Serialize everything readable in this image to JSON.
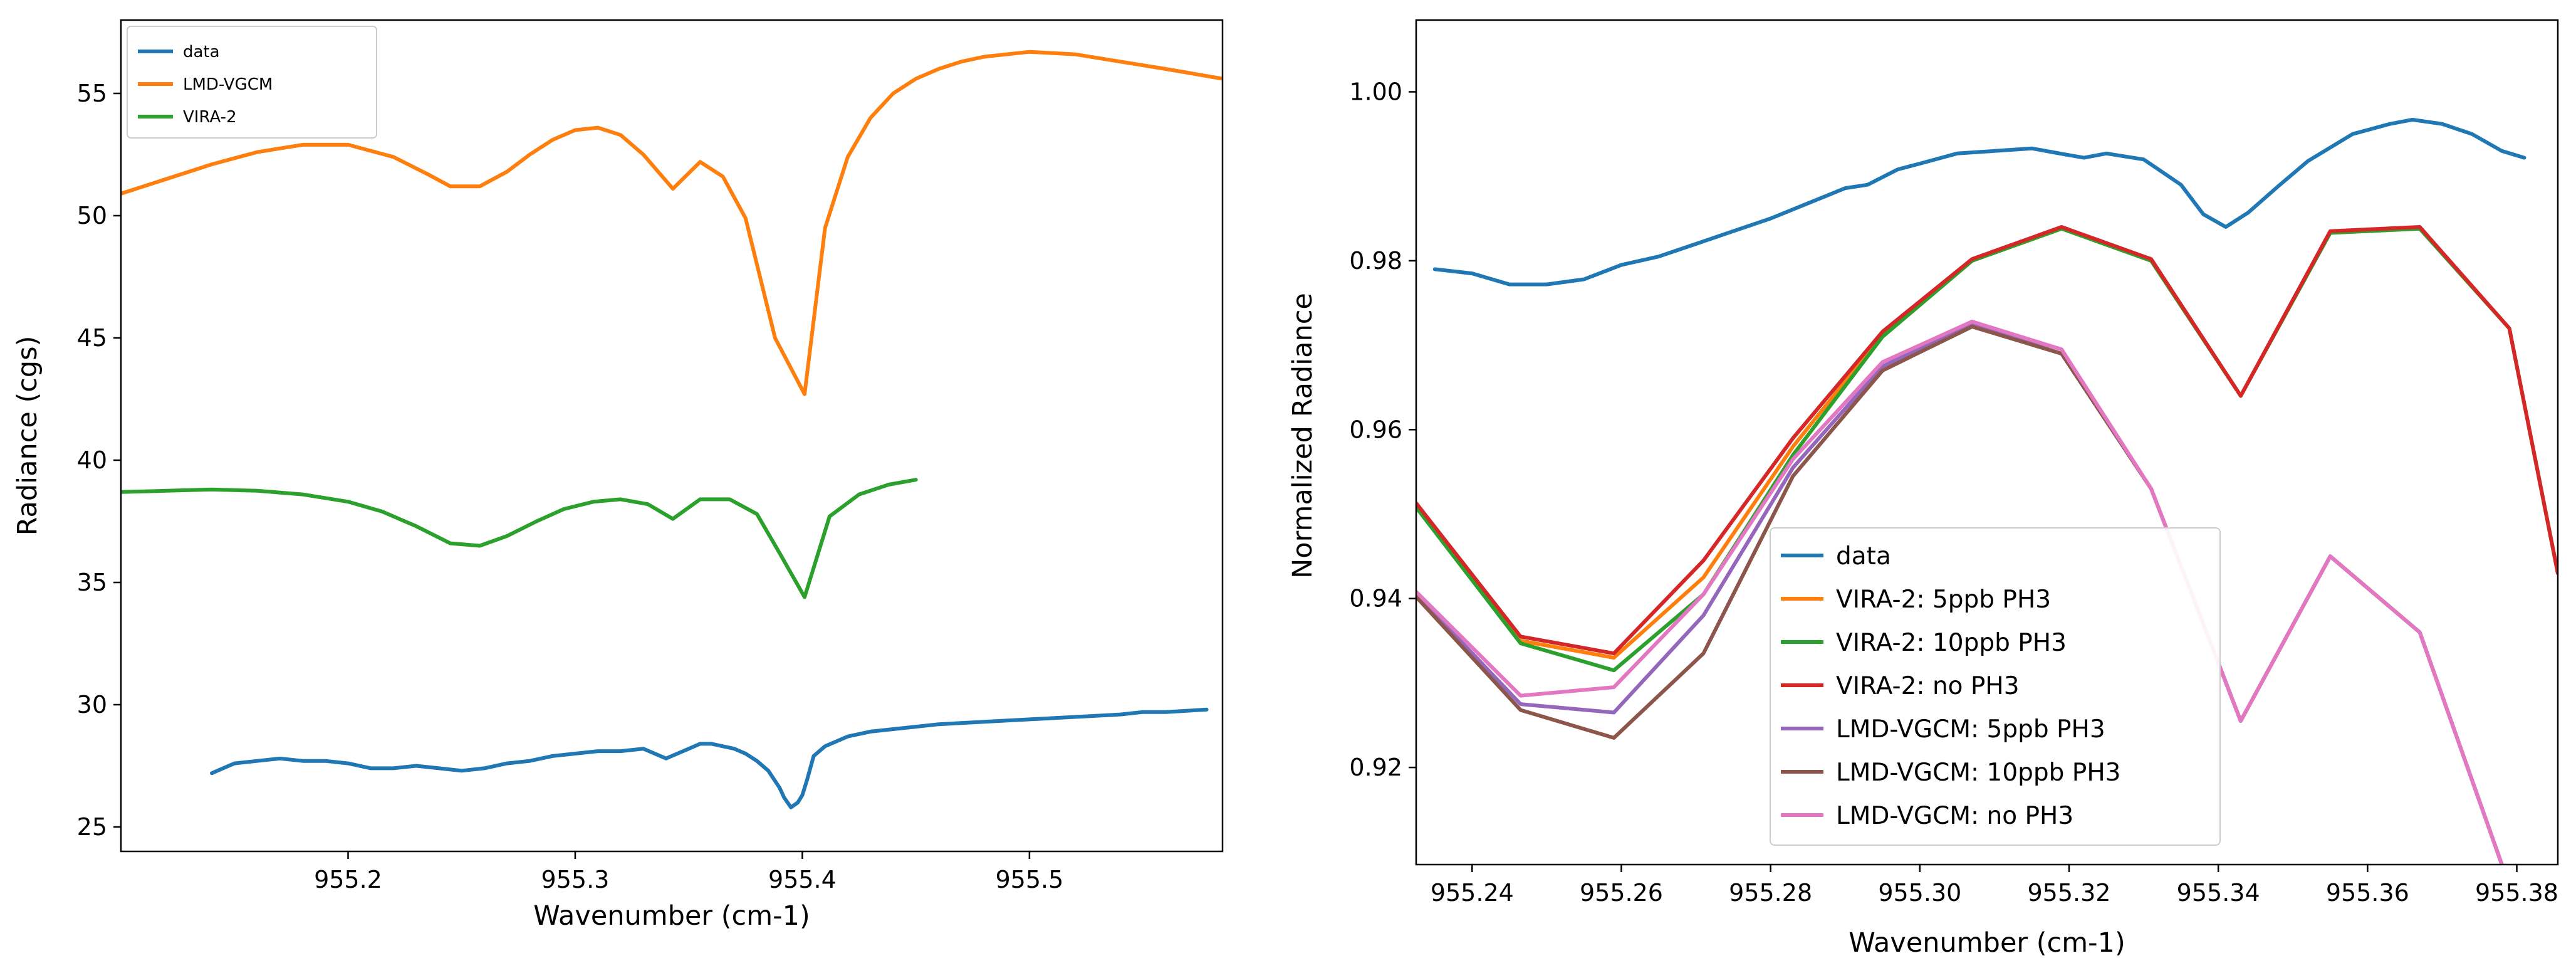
{
  "chart_data": [
    {
      "type": "line",
      "xlabel": "Wavenumber (cm-1)",
      "ylabel": "Radiance (cgs)",
      "xlim": [
        955.1,
        955.585
      ],
      "ylim": [
        24,
        58
      ],
      "xticks": [
        955.2,
        955.3,
        955.4,
        955.5
      ],
      "xtick_labels": [
        "955.2",
        "955.3",
        "955.4",
        "955.5"
      ],
      "yticks": [
        25,
        30,
        35,
        40,
        45,
        50,
        55
      ],
      "ytick_labels": [
        "25",
        "30",
        "35",
        "40",
        "45",
        "50",
        "55"
      ],
      "legend_position": "top-left",
      "series": [
        {
          "name": "data",
          "color": "#1f77b4",
          "x": [
            955.14,
            955.145,
            955.15,
            955.16,
            955.17,
            955.18,
            955.19,
            955.2,
            955.21,
            955.22,
            955.23,
            955.24,
            955.25,
            955.26,
            955.27,
            955.28,
            955.29,
            955.3,
            955.31,
            955.32,
            955.33,
            955.335,
            955.34,
            955.345,
            955.35,
            955.355,
            955.36,
            955.365,
            955.37,
            955.375,
            955.38,
            955.385,
            955.39,
            955.392,
            955.395,
            955.398,
            955.4,
            955.402,
            955.405,
            955.41,
            955.42,
            955.43,
            955.44,
            955.45,
            955.46,
            955.48,
            955.5,
            955.52,
            955.54,
            955.55,
            955.56,
            955.578
          ],
          "values": [
            27.2,
            27.4,
            27.6,
            27.7,
            27.8,
            27.7,
            27.7,
            27.6,
            27.4,
            27.4,
            27.5,
            27.4,
            27.3,
            27.4,
            27.6,
            27.7,
            27.9,
            28.0,
            28.1,
            28.1,
            28.2,
            28.0,
            27.8,
            28.0,
            28.2,
            28.4,
            28.4,
            28.3,
            28.2,
            28.0,
            27.7,
            27.3,
            26.6,
            26.2,
            25.8,
            26.0,
            26.3,
            26.9,
            27.9,
            28.3,
            28.7,
            28.9,
            29.0,
            29.1,
            29.2,
            29.3,
            29.4,
            29.5,
            29.6,
            29.7,
            29.7,
            29.8
          ]
        },
        {
          "name": "LMD-VGCM",
          "color": "#ff7f0e",
          "x": [
            955.1,
            955.12,
            955.14,
            955.16,
            955.18,
            955.2,
            955.22,
            955.235,
            955.245,
            955.258,
            955.27,
            955.28,
            955.29,
            955.3,
            955.31,
            955.32,
            955.33,
            955.343,
            955.355,
            955.365,
            955.375,
            955.388,
            955.401,
            955.41,
            955.42,
            955.43,
            955.44,
            955.45,
            955.46,
            955.47,
            955.48,
            955.5,
            955.52,
            955.54,
            955.56,
            955.585
          ],
          "values": [
            50.9,
            51.5,
            52.1,
            52.6,
            52.9,
            52.9,
            52.4,
            51.7,
            51.2,
            51.2,
            51.8,
            52.5,
            53.1,
            53.5,
            53.6,
            53.3,
            52.5,
            51.1,
            52.2,
            51.6,
            49.9,
            45.0,
            42.7,
            49.5,
            52.4,
            54.0,
            55.0,
            55.6,
            56.0,
            56.3,
            56.5,
            56.7,
            56.6,
            56.3,
            56.0,
            55.6
          ]
        },
        {
          "name": "VIRA-2",
          "color": "#2ca02c",
          "x": [
            955.1,
            955.12,
            955.14,
            955.16,
            955.18,
            955.2,
            955.215,
            955.23,
            955.245,
            955.258,
            955.27,
            955.283,
            955.295,
            955.308,
            955.32,
            955.332,
            955.343,
            955.355,
            955.368,
            955.38,
            955.39,
            955.401,
            955.412,
            955.425,
            955.438,
            955.45
          ],
          "values": [
            38.7,
            38.75,
            38.8,
            38.75,
            38.6,
            38.3,
            37.9,
            37.3,
            36.6,
            36.5,
            36.9,
            37.5,
            38.0,
            38.3,
            38.4,
            38.2,
            37.6,
            38.4,
            38.4,
            37.8,
            36.2,
            34.4,
            37.7,
            38.6,
            39.0,
            39.2
          ]
        }
      ]
    },
    {
      "type": "line",
      "xlabel": "Wavenumber (cm-1)",
      "ylabel": "Normalized Radiance",
      "xlim": [
        955.2325,
        955.3855
      ],
      "ylim": [
        0.9085,
        1.0085
      ],
      "xticks": [
        955.24,
        955.26,
        955.28,
        955.3,
        955.32,
        955.34,
        955.36,
        955.38
      ],
      "xtick_labels": [
        "955.24",
        "955.26",
        "955.28",
        "955.30",
        "955.32",
        "955.34",
        "955.36",
        "955.38"
      ],
      "yticks": [
        0.92,
        0.94,
        0.96,
        0.98,
        1.0
      ],
      "ytick_labels": [
        "0.92",
        "0.94",
        "0.96",
        "0.98",
        "1.00"
      ],
      "legend_position": "lower-center",
      "series": [
        {
          "name": "data",
          "color": "#1f77b4",
          "x": [
            955.235,
            955.24,
            955.245,
            955.25,
            955.255,
            955.26,
            955.265,
            955.27,
            955.275,
            955.28,
            955.285,
            955.29,
            955.293,
            955.297,
            955.3,
            955.305,
            955.31,
            955.315,
            955.32,
            955.322,
            955.325,
            955.33,
            955.335,
            955.338,
            955.341,
            955.344,
            955.348,
            955.352,
            955.358,
            955.363,
            955.366,
            955.37,
            955.374,
            955.378,
            955.381
          ],
          "values": [
            0.979,
            0.9785,
            0.9772,
            0.9772,
            0.9778,
            0.9795,
            0.9805,
            0.982,
            0.9835,
            0.985,
            0.9868,
            0.9886,
            0.989,
            0.9908,
            0.9915,
            0.9927,
            0.993,
            0.9933,
            0.9925,
            0.9922,
            0.9927,
            0.992,
            0.989,
            0.9855,
            0.984,
            0.9857,
            0.9888,
            0.9918,
            0.995,
            0.9962,
            0.9967,
            0.9962,
            0.995,
            0.993,
            0.9922
          ]
        },
        {
          "name": "VIRA-2: 5ppb PH3",
          "color": "#ff7f0e",
          "x": [
            955.2325,
            955.2465,
            955.259,
            955.271,
            955.283,
            955.295,
            955.307,
            955.319,
            955.331,
            955.343,
            955.355,
            955.367,
            955.379,
            955.3855
          ],
          "values": [
            0.9512,
            0.935,
            0.933,
            0.9425,
            0.958,
            0.9712,
            0.98,
            0.9838,
            0.98,
            0.964,
            0.9833,
            0.9838,
            0.972,
            0.943
          ]
        },
        {
          "name": "VIRA-2: 10ppb PH3",
          "color": "#2ca02c",
          "x": [
            955.2325,
            955.2465,
            955.259,
            955.271,
            955.283,
            955.295,
            955.307,
            955.319,
            955.331,
            955.343,
            955.355,
            955.367,
            955.379,
            955.3855
          ],
          "values": [
            0.9508,
            0.9347,
            0.9315,
            0.9405,
            0.957,
            0.971,
            0.98,
            0.9838,
            0.98,
            0.964,
            0.9833,
            0.9838,
            0.972,
            0.943
          ]
        },
        {
          "name": "VIRA-2: no PH3",
          "color": "#d62728",
          "x": [
            955.2325,
            955.2465,
            955.259,
            955.271,
            955.283,
            955.295,
            955.307,
            955.319,
            955.331,
            955.343,
            955.355,
            955.367,
            955.379,
            955.3855
          ],
          "values": [
            0.9513,
            0.9355,
            0.9335,
            0.9445,
            0.959,
            0.9716,
            0.9802,
            0.984,
            0.9802,
            0.964,
            0.9835,
            0.984,
            0.972,
            0.943
          ]
        },
        {
          "name": "LMD-VGCM: 5ppb PH3",
          "color": "#9467bd",
          "x": [
            955.2325,
            955.2465,
            955.259,
            955.271,
            955.283,
            955.295,
            955.307,
            955.319,
            955.331,
            955.343,
            955.355,
            955.367,
            955.378
          ],
          "values": [
            0.9405,
            0.9275,
            0.9265,
            0.938,
            0.9555,
            0.9675,
            0.9725,
            0.969,
            0.953,
            0.9255,
            0.945,
            0.936,
            0.9085
          ]
        },
        {
          "name": "LMD-VGCM: 10ppb PH3",
          "color": "#8c564b",
          "x": [
            955.2325,
            955.2465,
            955.259,
            955.271,
            955.283,
            955.295,
            955.307,
            955.319,
            955.331,
            955.343,
            955.355,
            955.367,
            955.378
          ],
          "values": [
            0.9402,
            0.9268,
            0.9235,
            0.9335,
            0.9545,
            0.967,
            0.9722,
            0.969,
            0.953,
            0.9255,
            0.945,
            0.936,
            0.9085
          ]
        },
        {
          "name": "LMD-VGCM: no PH3",
          "color": "#e377c2",
          "x": [
            955.2325,
            955.2465,
            955.259,
            955.271,
            955.283,
            955.295,
            955.307,
            955.319,
            955.331,
            955.343,
            955.355,
            955.367,
            955.378
          ],
          "values": [
            0.9408,
            0.9285,
            0.9295,
            0.9405,
            0.9565,
            0.968,
            0.9728,
            0.9695,
            0.953,
            0.9255,
            0.945,
            0.936,
            0.9085
          ]
        }
      ]
    }
  ]
}
